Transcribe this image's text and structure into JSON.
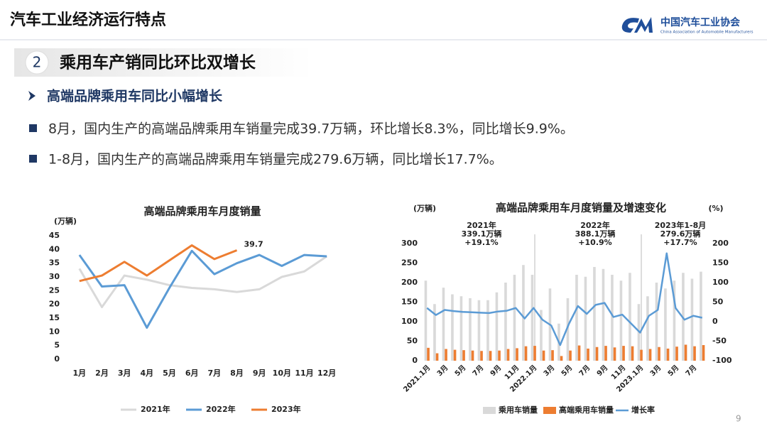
{
  "header": {
    "title": "汽车工业经济运行特点",
    "org": "中国汽车工业协会",
    "org_en": "China Association of Automobile Manufacturers"
  },
  "section": {
    "number": "2",
    "title": "乘用车产销同比环比双增长"
  },
  "subheading": "高端品牌乘用车同比小幅增长",
  "bullets": [
    "8月，国内生产的高端品牌乘用车销量完成39.7万辆，环比增长8.3%，同比增长9.9%。",
    "1-8月，国内生产的高端品牌乘用车销量完成279.6万辆，同比增长17.7%。"
  ],
  "page_number": "9",
  "chart_data": [
    {
      "type": "line",
      "title": "高端品牌乘用车月度销量",
      "y_label": "(万辆)",
      "categories": [
        "1月",
        "2月",
        "3月",
        "4月",
        "5月",
        "6月",
        "7月",
        "8月",
        "9月",
        "10月",
        "11月",
        "12月"
      ],
      "series": [
        {
          "name": "2021年",
          "color": "#d9d9d9",
          "values": [
            33,
            19,
            30.5,
            29,
            27,
            26,
            25.5,
            24.5,
            25.5,
            30,
            32,
            37.5
          ]
        },
        {
          "name": "2022年",
          "color": "#5b9bd5",
          "values": [
            38,
            26.5,
            27,
            11.5,
            26,
            39.5,
            31,
            35,
            38,
            34,
            38,
            37.5
          ]
        },
        {
          "name": "2023年",
          "color": "#ed7d31",
          "values": [
            28.5,
            30.5,
            35.5,
            30.5,
            36,
            41.5,
            36.5,
            39.7,
            null,
            null,
            null,
            null
          ],
          "labeled_index": 7
        }
      ],
      "ylim": [
        0,
        45
      ],
      "yticks": [
        0,
        5,
        10,
        15,
        20,
        25,
        30,
        35,
        40,
        45
      ],
      "legend": "bottom"
    },
    {
      "type": "combo",
      "title": "高端品牌乘用车月度销量及增速变化",
      "y_label": "(万辆)",
      "y2_label": "(%)",
      "categories": [
        "2021.1月",
        null,
        "3月",
        null,
        "5月",
        null,
        "7月",
        null,
        "9月",
        null,
        "11月",
        null,
        "2022.1月",
        null,
        "3月",
        null,
        "5月",
        null,
        "7月",
        null,
        "9月",
        null,
        "11月",
        null,
        "2023.1月",
        null,
        "3月",
        null,
        "5月",
        null,
        "7月",
        null
      ],
      "series": [
        {
          "name": "乘用车销量",
          "color": "#d9d9d9",
          "kind": "bar",
          "values": [
            205,
            145,
            187,
            170,
            165,
            160,
            155,
            155,
            175,
            200,
            220,
            245,
            220,
            130,
            185,
            95,
            160,
            220,
            215,
            240,
            235,
            220,
            205,
            225,
            145,
            165,
            200,
            185,
            205,
            225,
            210,
            228
          ]
        },
        {
          "name": "高端乘用车销量",
          "color": "#ed7d31",
          "kind": "bar",
          "values": [
            33,
            19,
            30,
            28,
            27,
            26,
            25,
            25,
            26,
            30,
            32,
            37,
            38,
            26,
            27,
            12,
            26,
            39,
            31,
            35,
            38,
            34,
            38,
            37,
            28,
            30,
            35,
            31,
            36,
            41,
            37,
            40
          ]
        },
        {
          "name": "增长率",
          "color": "#5b9bd5",
          "kind": "line",
          "axis": "y2",
          "values": [
            35,
            17,
            30,
            27,
            25,
            24,
            23,
            22,
            26,
            28,
            35,
            8,
            35,
            5,
            -10,
            -60,
            -5,
            40,
            20,
            43,
            48,
            12,
            18,
            -5,
            -28,
            15,
            30,
            175,
            35,
            5,
            15,
            10
          ]
        }
      ],
      "ylim": [
        0,
        300
      ],
      "yticks": [
        0,
        50,
        100,
        150,
        200,
        250,
        300
      ],
      "y2lim": [
        -100,
        200
      ],
      "y2ticks": [
        -100,
        -50,
        0,
        50,
        100,
        150,
        200
      ],
      "legend": "bottom",
      "annotations": [
        [
          "2021年",
          "339.1万辆",
          "+19.1%"
        ],
        [
          "2022年",
          "388.1万辆",
          "+10.9%"
        ],
        [
          "2023年1-8月",
          "279.6万辆",
          "+17.7%"
        ]
      ]
    }
  ]
}
